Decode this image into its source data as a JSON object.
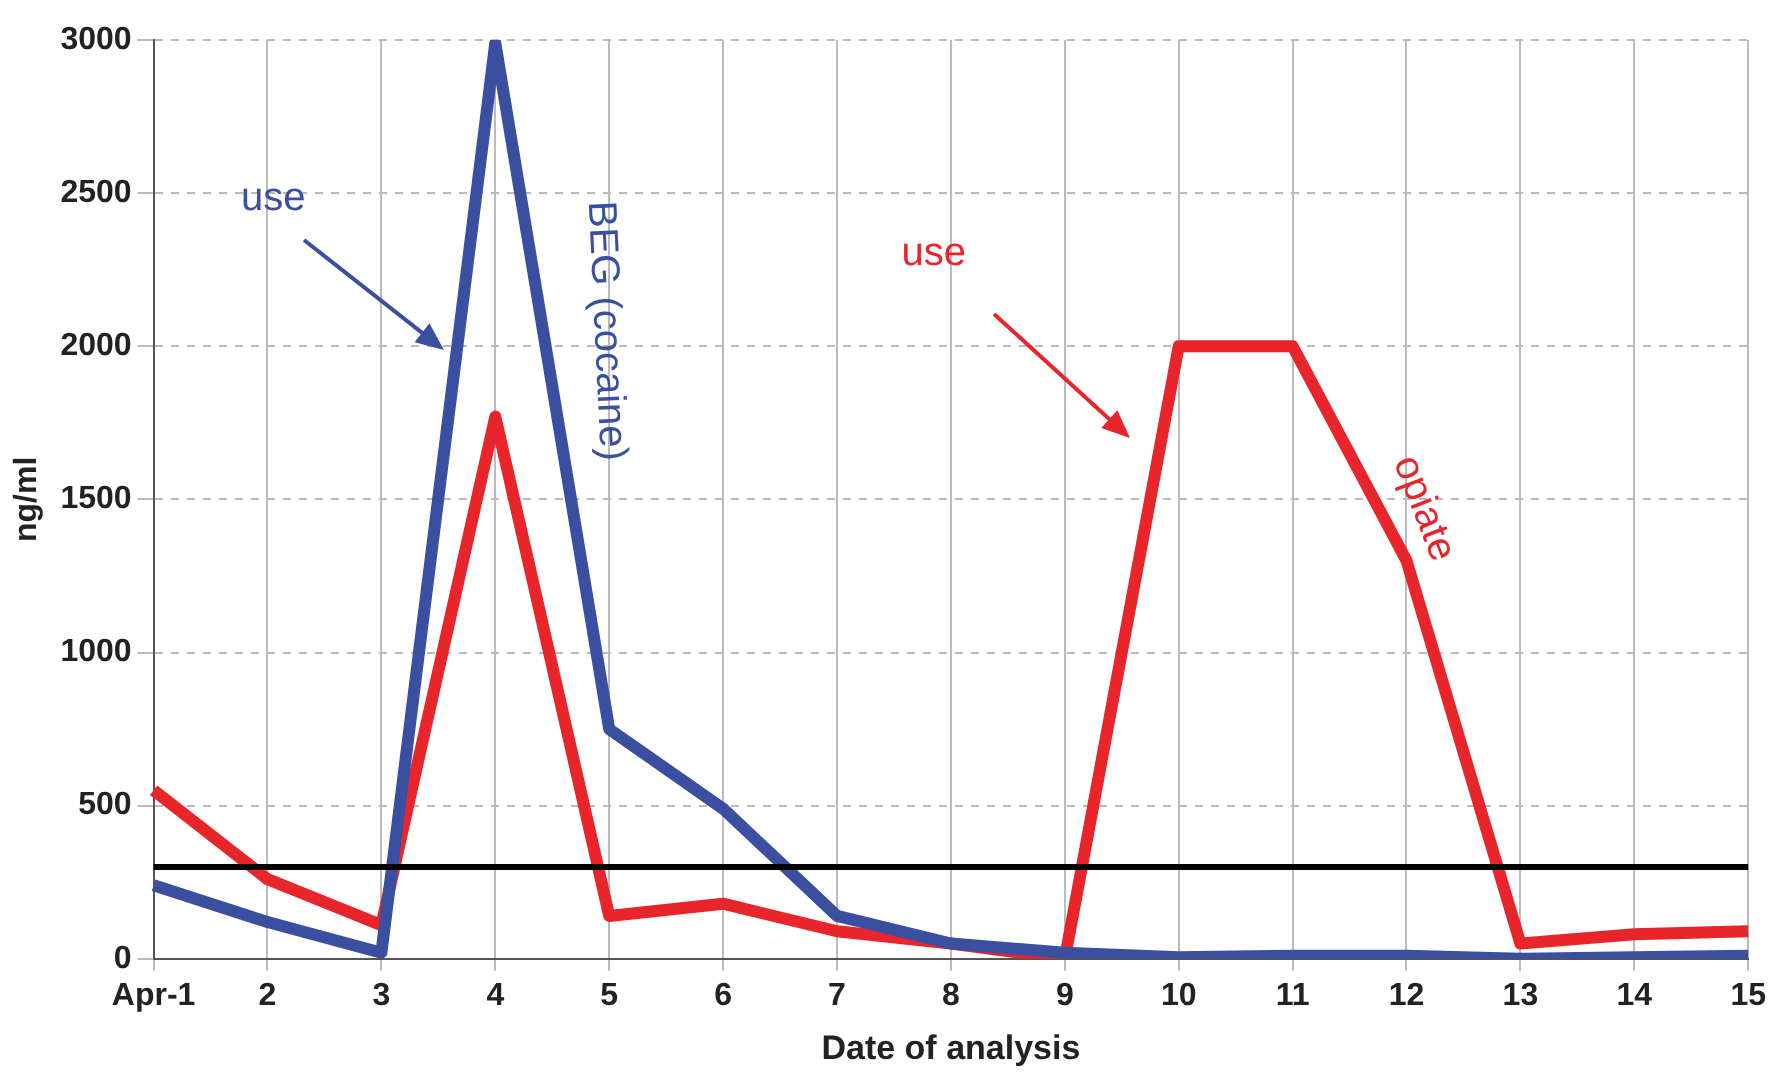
{
  "chart_data": {
    "type": "line",
    "xlabel": "Date of analysis",
    "ylabel": "ng/ml",
    "categories": [
      "Apr-1",
      "2",
      "3",
      "4",
      "5",
      "6",
      "7",
      "8",
      "9",
      "10",
      "11",
      "12",
      "13",
      "14",
      "15"
    ],
    "series": [
      {
        "color": "#3a4fa0",
        "values": [
          240,
          120,
          20,
          2990,
          750,
          490,
          140,
          50,
          20,
          5,
          10,
          10,
          0,
          5,
          10
        ]
      },
      {
        "color": "#e8252a",
        "values": [
          550,
          260,
          110,
          1770,
          140,
          180,
          90,
          50,
          0,
          2000,
          2000,
          1300,
          50,
          80,
          90
        ]
      }
    ],
    "ylim": [
      0,
      3000
    ],
    "yticks": [
      0,
      500,
      1000,
      1500,
      2000,
      2500,
      3000
    ],
    "grid": true,
    "legend": false,
    "line_style": "solid",
    "ref_lines": [
      {
        "axis": "y",
        "value": 300,
        "color": "#000000"
      }
    ],
    "annotations": [
      "use",
      "BEG (cocaine)",
      "use",
      "opiate"
    ]
  }
}
